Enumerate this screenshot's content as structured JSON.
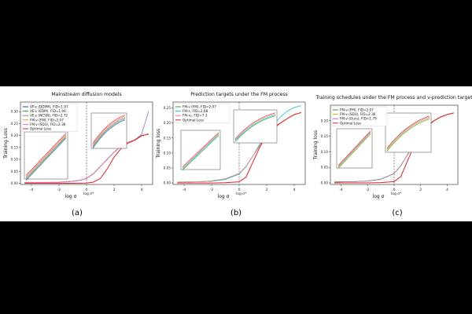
{
  "chart_data": [
    {
      "type": "line",
      "panel_label": "(a)",
      "title": "Mainstream diffusion models",
      "xlabel": "log σ",
      "ylabel": "Training Loss",
      "marker_label": "log σ*",
      "marker_x": 0,
      "xlim": [
        -4.8,
        4.8
      ],
      "ylim": [
        -0.005,
        0.34
      ],
      "xticks": [
        -4,
        -2,
        0,
        2,
        4
      ],
      "yticks": [
        0.0,
        0.05,
        0.1,
        0.15,
        0.2,
        0.25,
        0.3
      ],
      "ytick_labels": [
        "0.00",
        "0.05",
        "0.10",
        "0.15",
        "0.20",
        "0.25",
        "0.30"
      ],
      "legend": [
        "VP-ε (DDPM), FID=1.97",
        "VE-ε (EDM), FID=1.94",
        "VE-ε (NCSN), FID=2.72",
        "FM-v (FM), FID=2.07",
        "FM-v (SD3), FID=2.36",
        "Optimal Loss"
      ],
      "series": [
        {
          "name": "VP-ε (DDPM), FID=1.97",
          "color": "#1f4fbf",
          "x": [
            -4.5,
            -3,
            -2,
            -1,
            -0.5,
            0,
            0.5,
            1,
            1.5,
            2,
            2.5,
            3,
            3.5,
            4.0,
            4.5
          ],
          "y": [
            0.003,
            0.003,
            0.004,
            0.008,
            0.012,
            0.02,
            0.04,
            0.07,
            0.1,
            0.13,
            0.155,
            0.17,
            0.18,
            0.2,
            0.205
          ]
        },
        {
          "name": "VE-ε (EDM), FID=1.94",
          "color": "#2ca02c",
          "x": [
            -4.5,
            -3,
            -2,
            -1,
            -0.5,
            0,
            0.5,
            1,
            1.5,
            2,
            2.5,
            3,
            3.5,
            4.0,
            4.5
          ],
          "y": [
            0.003,
            0.003,
            0.004,
            0.008,
            0.012,
            0.02,
            0.04,
            0.07,
            0.1,
            0.13,
            0.155,
            0.17,
            0.18,
            0.2,
            0.205
          ]
        },
        {
          "name": "VE-ε (NCSN), FID=2.72",
          "color": "#9a6fbf",
          "x": [
            -4.5,
            -3,
            -2,
            -1,
            -0.5,
            0,
            0.5,
            1,
            1.5,
            2,
            2.5,
            3,
            3.5,
            4.0,
            4.5
          ],
          "y": [
            0.004,
            0.004,
            0.005,
            0.009,
            0.013,
            0.021,
            0.041,
            0.071,
            0.101,
            0.131,
            0.156,
            0.171,
            0.182,
            0.205,
            0.3
          ]
        },
        {
          "name": "FM-v (FM), FID=2.07",
          "color": "#d4b106",
          "x": [
            -4.5,
            -3,
            -2,
            -1,
            -0.5,
            0,
            0.5,
            1,
            1.5,
            2,
            2.5,
            3,
            3.5,
            4.0,
            4.5
          ],
          "y": [
            0.003,
            0.003,
            0.004,
            0.008,
            0.012,
            0.02,
            0.04,
            0.07,
            0.1,
            0.13,
            0.155,
            0.17,
            0.18,
            0.2,
            0.205
          ]
        },
        {
          "name": "FM-v (SD3), FID=2.36",
          "color": "#e377c2",
          "x": [
            -4.5,
            -3,
            -2,
            -1,
            -0.5,
            0,
            0.5,
            1,
            1.5,
            2,
            2.5,
            3,
            3.5,
            4.0,
            4.5
          ],
          "y": [
            0.003,
            0.003,
            0.004,
            0.008,
            0.012,
            0.02,
            0.04,
            0.07,
            0.1,
            0.13,
            0.155,
            0.17,
            0.18,
            0.2,
            0.205
          ]
        },
        {
          "name": "Optimal Loss",
          "color": "#e02020",
          "x": [
            -4.5,
            -2,
            -1,
            0,
            0.5,
            1,
            1.5,
            2,
            2.5,
            3,
            3.5,
            4.0,
            4.5
          ],
          "y": [
            0.0,
            0.0,
            0.0,
            0.001,
            0.005,
            0.02,
            0.06,
            0.11,
            0.145,
            0.168,
            0.18,
            0.198,
            0.207
          ]
        }
      ]
    },
    {
      "type": "line",
      "panel_label": "(b)",
      "title": "Prediction targets under the FM process",
      "xlabel": "log σ",
      "ylabel": "Training loss",
      "marker_label": "log σ*",
      "marker_x": 0,
      "xlim": [
        -4.8,
        4.8
      ],
      "ylim": [
        -0.005,
        0.27
      ],
      "xticks": [
        -4,
        -2,
        0,
        2,
        4
      ],
      "yticks": [
        0.0,
        0.05,
        0.1,
        0.15,
        0.2,
        0.25
      ],
      "ytick_labels": [
        "0.00",
        "0.05",
        "0.10",
        "0.15",
        "0.20",
        "0.25"
      ],
      "legend": [
        "FM-v (FM), FID=2.07",
        "FM-ε, FID=2.08",
        "FM-x₀, FID=7.3",
        "Optimal Loss"
      ],
      "series": [
        {
          "name": "FM-v (FM), FID=2.07",
          "color": "#2ca02c",
          "x": [
            -4.5,
            -3,
            -2,
            -1,
            0,
            0.5,
            1,
            1.5,
            2,
            2.5,
            3,
            3.5,
            4.0,
            4.5
          ],
          "y": [
            0.003,
            0.004,
            0.006,
            0.012,
            0.03,
            0.055,
            0.09,
            0.125,
            0.155,
            0.18,
            0.2,
            0.215,
            0.228,
            0.235
          ]
        },
        {
          "name": "FM-ε, FID=2.08",
          "color": "#17becf",
          "x": [
            -4.5,
            -3,
            -2,
            -1,
            0,
            0.5,
            1,
            1.5,
            2,
            2.5,
            3,
            3.5,
            4.0,
            4.5
          ],
          "y": [
            0.003,
            0.004,
            0.006,
            0.012,
            0.03,
            0.055,
            0.09,
            0.13,
            0.165,
            0.195,
            0.22,
            0.24,
            0.252,
            0.258
          ]
        },
        {
          "name": "FM-x₀, FID=7.3",
          "color": "#f08080",
          "x": [
            -4.5,
            -3,
            -2,
            -1,
            0,
            0.5,
            1,
            1.5,
            2,
            2.5,
            3,
            3.5,
            4.0,
            4.5
          ],
          "y": [
            0.003,
            0.004,
            0.007,
            0.014,
            0.032,
            0.056,
            0.09,
            0.125,
            0.155,
            0.18,
            0.2,
            0.215,
            0.228,
            0.235
          ]
        },
        {
          "name": "Optimal Loss",
          "color": "#e02020",
          "x": [
            -4.5,
            -2,
            -1,
            0,
            0.5,
            1,
            1.5,
            2,
            2.5,
            3,
            3.5,
            4.0,
            4.5
          ],
          "y": [
            0.0,
            0.0,
            0.001,
            0.004,
            0.02,
            0.07,
            0.12,
            0.16,
            0.185,
            0.2,
            0.215,
            0.228,
            0.235
          ]
        }
      ]
    },
    {
      "type": "line",
      "panel_label": "(c)",
      "title": "Training schedules under the FM process and v-prediction target",
      "xlabel": "log σ",
      "ylabel": "Training loss",
      "marker_label": "log σ*",
      "marker_x": 0,
      "xlim": [
        -4.8,
        4.8
      ],
      "ylim": [
        -0.005,
        0.25
      ],
      "xticks": [
        -4,
        -2,
        0,
        2,
        4
      ],
      "yticks": [
        0.0,
        0.05,
        0.1,
        0.15,
        0.2
      ],
      "ytick_labels": [
        "0.00",
        "0.05",
        "0.10",
        "0.15",
        "0.20"
      ],
      "legend": [
        "FM-v (FM), FID=2.07",
        "FM-v (SD3), FID=2.36",
        "FM-v (Ours), FID=1.79",
        "Optimal Loss"
      ],
      "series": [
        {
          "name": "FM-v (FM), FID=2.07",
          "color": "#2ca02c",
          "x": [
            -4.5,
            -3,
            -2,
            -1,
            0,
            0.5,
            1,
            1.5,
            2,
            2.5,
            3,
            3.5,
            4.0,
            4.5
          ],
          "y": [
            0.003,
            0.004,
            0.006,
            0.012,
            0.03,
            0.055,
            0.09,
            0.125,
            0.155,
            0.18,
            0.2,
            0.212,
            0.22,
            0.225
          ]
        },
        {
          "name": "FM-v (SD3), FID=2.36",
          "color": "#d4b106",
          "x": [
            -4.5,
            -3,
            -2,
            -1,
            0,
            0.5,
            1,
            1.5,
            2,
            2.5,
            3,
            3.5,
            4.0,
            4.5
          ],
          "y": [
            0.003,
            0.004,
            0.006,
            0.012,
            0.03,
            0.055,
            0.09,
            0.125,
            0.155,
            0.18,
            0.2,
            0.212,
            0.22,
            0.225
          ]
        },
        {
          "name": "FM-v (Ours), FID=1.79",
          "color": "#9a6fbf",
          "x": [
            -4.5,
            -3,
            -2,
            -1,
            0,
            0.5,
            1,
            1.5,
            2,
            2.5,
            3,
            3.5,
            4.0,
            4.5
          ],
          "y": [
            0.003,
            0.004,
            0.006,
            0.012,
            0.03,
            0.055,
            0.09,
            0.125,
            0.155,
            0.18,
            0.2,
            0.212,
            0.22,
            0.225
          ]
        },
        {
          "name": "Optimal Loss",
          "color": "#e02020",
          "x": [
            -4.5,
            -2,
            -1,
            0,
            0.5,
            1,
            1.5,
            2,
            2.5,
            3,
            3.5,
            4.0,
            4.5
          ],
          "y": [
            0.0,
            0.0,
            0.001,
            0.004,
            0.02,
            0.07,
            0.12,
            0.16,
            0.185,
            0.2,
            0.212,
            0.22,
            0.225
          ]
        }
      ]
    }
  ]
}
